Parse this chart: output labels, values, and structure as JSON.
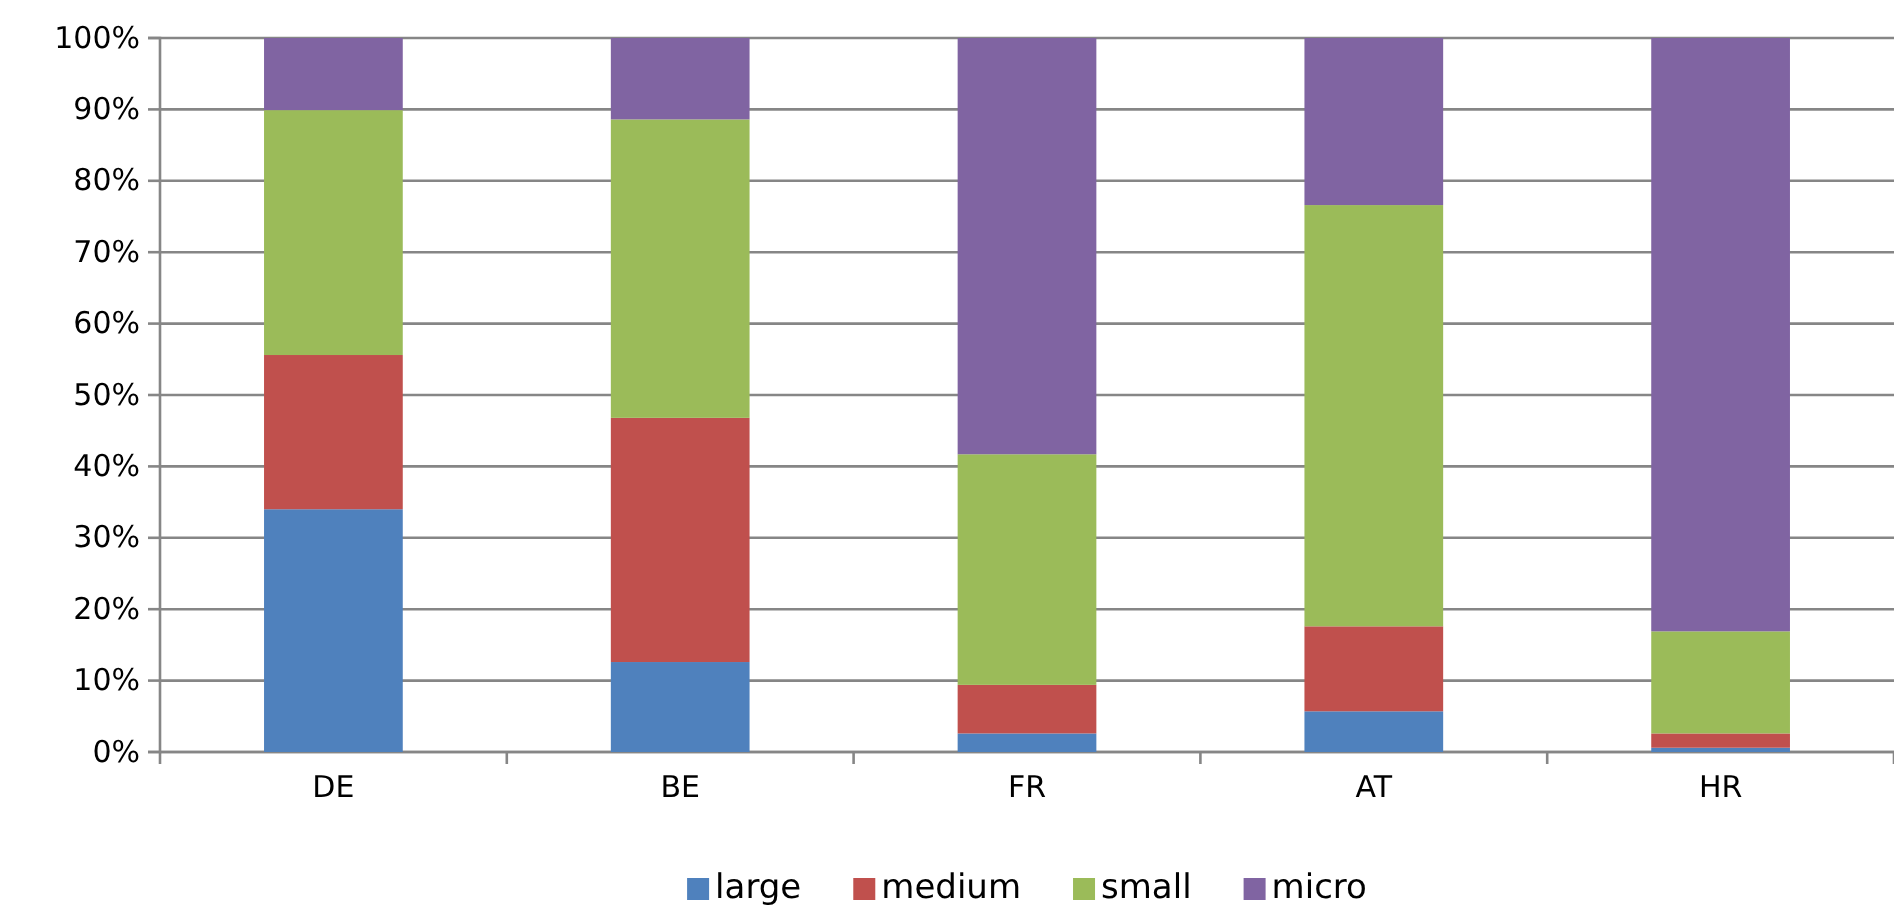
{
  "chart_data": {
    "type": "bar",
    "stacked": true,
    "categories": [
      "DE",
      "BE",
      "FR",
      "AT",
      "HR"
    ],
    "series": [
      {
        "name": "large",
        "color": "#4f81bd",
        "values": [
          34,
          12.6,
          2.6,
          5.7,
          0.6
        ]
      },
      {
        "name": "medium",
        "color": "#c0504d",
        "values": [
          21.6,
          34.2,
          6.8,
          11.9,
          2.0
        ]
      },
      {
        "name": "small",
        "color": "#9bbb59",
        "values": [
          34.3,
          41.8,
          32.3,
          59.0,
          14.3
        ]
      },
      {
        "name": "micro",
        "color": "#8064a2",
        "values": [
          10.1,
          11.4,
          58.3,
          23.4,
          83.1
        ]
      }
    ],
    "ylim": [
      0,
      100
    ],
    "yticks": [
      {
        "value": 0,
        "label": "0%"
      },
      {
        "value": 10,
        "label": "10%"
      },
      {
        "value": 20,
        "label": "20%"
      },
      {
        "value": 30,
        "label": "30%"
      },
      {
        "value": 40,
        "label": "40%"
      },
      {
        "value": 50,
        "label": "50%"
      },
      {
        "value": 60,
        "label": "60%"
      },
      {
        "value": 70,
        "label": "70%"
      },
      {
        "value": 80,
        "label": "80%"
      },
      {
        "value": 90,
        "label": "90%"
      },
      {
        "value": 100,
        "label": "100%"
      }
    ],
    "grid": "y",
    "legend": "bottom"
  }
}
